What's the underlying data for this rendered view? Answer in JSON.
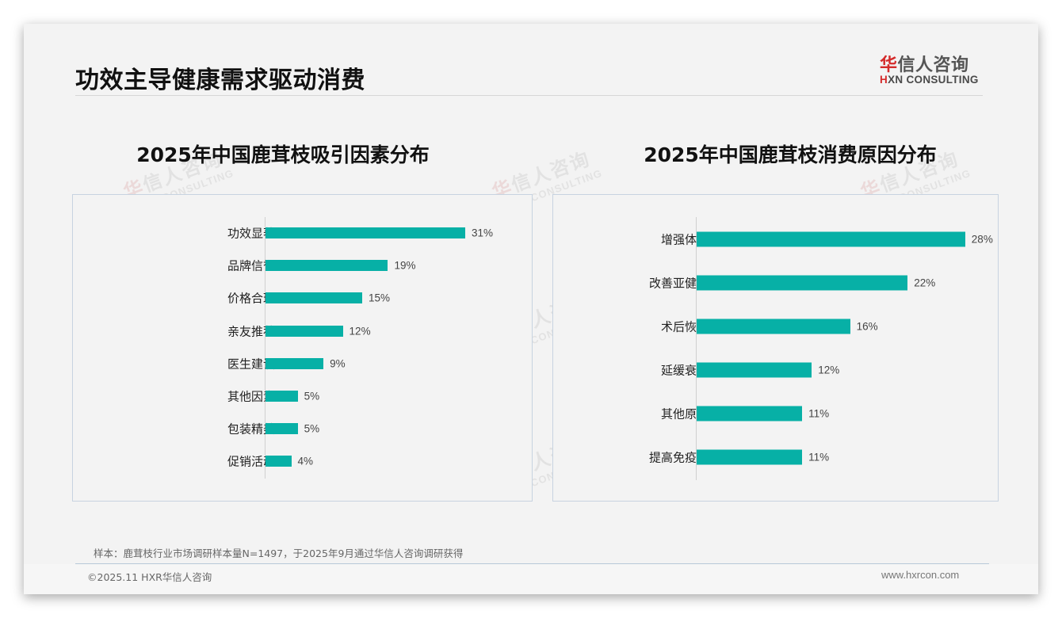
{
  "header": {
    "title": "功效主导健康需求驱动消费",
    "logo": {
      "cn_mark": "华",
      "cn_rest": "信人咨询",
      "en_mark": "H",
      "en_rest": "XN CONSULTING"
    }
  },
  "watermark": {
    "cn_mark": "华",
    "cn_rest": "信人咨询",
    "en": "HXN CONSULTING"
  },
  "chart_data": [
    {
      "type": "bar",
      "orientation": "horizontal",
      "title": "2025年中国鹿茸枝吸引因素分布",
      "categories": [
        "功效显著",
        "品牌信誉",
        "价格合理",
        "亲友推荐",
        "医生建议",
        "其他因素",
        "包装精美",
        "促销活动"
      ],
      "values": [
        31,
        19,
        15,
        12,
        9,
        5,
        5,
        4
      ],
      "labels": [
        "31%",
        "19%",
        "15%",
        "12%",
        "9%",
        "5%",
        "5%",
        "4%"
      ],
      "unit": "%",
      "color": "#07b0a6",
      "grid": false,
      "legend": false,
      "xlabel": "",
      "ylabel": ""
    },
    {
      "type": "bar",
      "orientation": "horizontal",
      "title": "2025年中国鹿茸枝消费原因分布",
      "categories": [
        "增强体质",
        "改善亚健康",
        "术后恢复",
        "延缓衰老",
        "其他原因",
        "提高免疫力"
      ],
      "values": [
        28,
        22,
        16,
        12,
        11,
        11
      ],
      "labels": [
        "28%",
        "22%",
        "16%",
        "12%",
        "11%",
        "11%"
      ],
      "unit": "%",
      "color": "#07b0a6",
      "grid": false,
      "legend": false,
      "xlabel": "",
      "ylabel": ""
    }
  ],
  "footer": {
    "note": "样本：鹿茸枝行业市场调研样本量N=1497，于2025年9月通过华信人咨询调研获得",
    "copyright": "©2025.11 HXR华信人咨询",
    "website": "www.hxrcon.com"
  }
}
